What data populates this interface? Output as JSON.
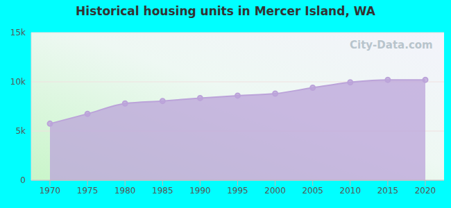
{
  "chart_data": {
    "type": "area",
    "title": "Historical housing units in Mercer Island, WA",
    "watermark": "City-Data.com",
    "categories": [
      "1970",
      "1975",
      "1980",
      "1985",
      "1990",
      "1995",
      "2000",
      "2005",
      "2010",
      "2015",
      "2020"
    ],
    "values": [
      5750,
      6750,
      7800,
      8050,
      8350,
      8600,
      8800,
      9400,
      9950,
      10200,
      10200
    ],
    "color": "#bba3d9",
    "ylim": [
      0,
      15000
    ],
    "yticks": [
      0,
      {
        "value": 5000,
        "label": "5k"
      },
      {
        "value": 10000,
        "label": "10k"
      },
      {
        "value": 15000,
        "label": "15k"
      }
    ],
    "grid": true,
    "marker": "circle"
  }
}
